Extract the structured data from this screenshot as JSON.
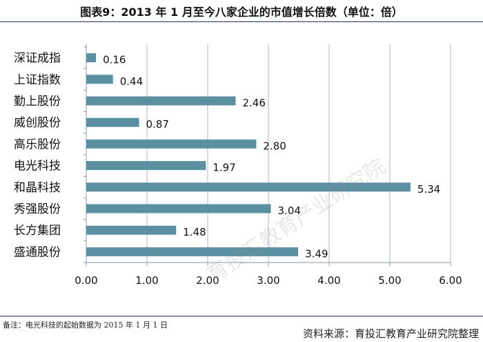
{
  "chart_data": {
    "type": "bar",
    "orientation": "horizontal",
    "title": "图表9：2013 年 1 月至今八家企业的市值增长倍数（单位：倍）",
    "categories": [
      "深证成指",
      "上证指数",
      "勤上股份",
      "威创股份",
      "高乐股份",
      "电光科技",
      "和晶科技",
      "秀强股份",
      "长方集团",
      "盛通股份"
    ],
    "values": [
      0.16,
      0.44,
      2.46,
      0.87,
      2.8,
      1.97,
      5.34,
      3.04,
      1.48,
      3.49
    ],
    "value_labels": [
      "0.16",
      "0.44",
      "2.46",
      "0.87",
      "2.80",
      "1.97",
      "5.34",
      "3.04",
      "1.48",
      "3.49"
    ],
    "x_ticks": [
      "0.00",
      "1.00",
      "2.00",
      "3.00",
      "4.00",
      "5.00",
      "6.00"
    ],
    "xlim": [
      0,
      6
    ],
    "grid": true,
    "bar_color": "#5b8fa2"
  },
  "footnote": "备注：电光科技的起始数据为 2015 年 1 月 1 日",
  "source": "资料来源：育投汇教育产业研究院整理",
  "watermark": "育投汇教育产业研究院"
}
